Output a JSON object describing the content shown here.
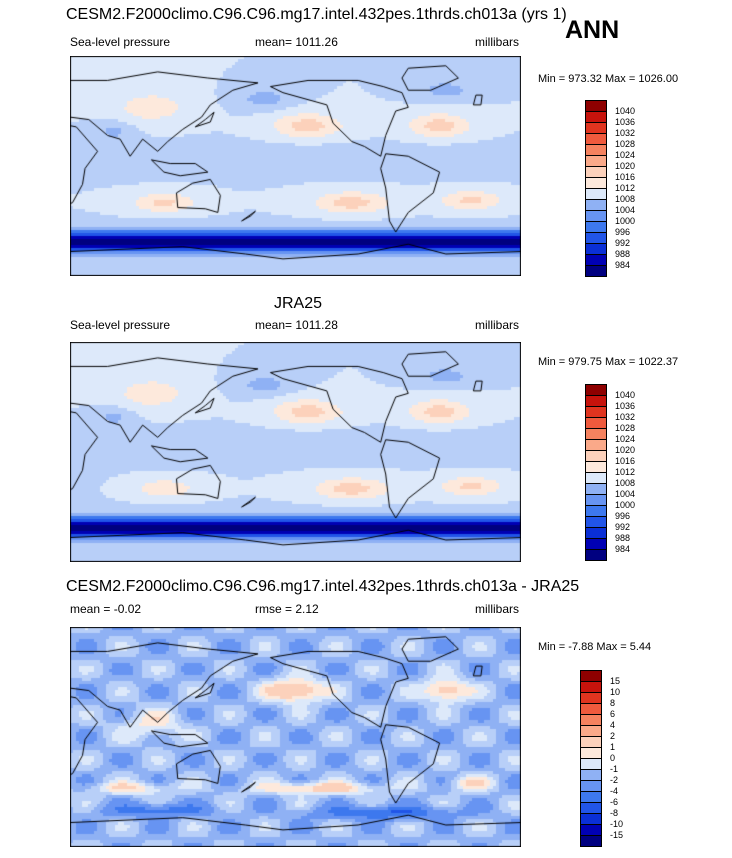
{
  "season": "ANN",
  "colors": {
    "slp": [
      "#000080",
      "#0000b4",
      "#0a2fd6",
      "#2155e8",
      "#3d78ee",
      "#6794f2",
      "#8fb1f4",
      "#b8cff8",
      "#dde9fa",
      "#fde9dc",
      "#fcd1bb",
      "#faa989",
      "#f5825f",
      "#ef5a3d",
      "#e0341f",
      "#c7130c",
      "#8e0000"
    ],
    "diff": [
      "#000080",
      "#0000b4",
      "#0a2fd6",
      "#2155e8",
      "#3d78ee",
      "#6794f2",
      "#8fb1f4",
      "#b8cff8",
      "#dde9fa",
      "#fde9dc",
      "#fcd1bb",
      "#faa989",
      "#f5825f",
      "#ef5a3d",
      "#e0341f",
      "#c7130c",
      "#8e0000"
    ],
    "land": "#000000"
  },
  "chart_data": [
    {
      "type": "heatmap",
      "title": "CESM2.F2000climo.C96.C96.mg17.intel.432pes.1thrds.ch013a (yrs 1)",
      "left_label": "Sea-level pressure",
      "mean_label": "mean=",
      "mean_value": "1011.26",
      "units": "millibars",
      "min_label": "Min =",
      "min_value": "973.32",
      "max_label": "Max =",
      "max_value": "1026.00",
      "levels": [
        "984",
        "988",
        "992",
        "996",
        "1000",
        "1004",
        "1008",
        "1012",
        "1016",
        "1020",
        "1024",
        "1028",
        "1032",
        "1036",
        "1040"
      ],
      "field": "slp_model"
    },
    {
      "type": "heatmap",
      "title": "JRA25",
      "left_label": "Sea-level pressure",
      "mean_label": "mean=",
      "mean_value": "1011.28",
      "units": "millibars",
      "min_label": "Min =",
      "min_value": "979.75",
      "max_label": "Max =",
      "max_value": "1022.37",
      "levels": [
        "984",
        "988",
        "992",
        "996",
        "1000",
        "1004",
        "1008",
        "1012",
        "1016",
        "1020",
        "1024",
        "1028",
        "1032",
        "1036",
        "1040"
      ],
      "field": "slp_obs"
    },
    {
      "type": "heatmap",
      "title": "CESM2.F2000climo.C96.C96.mg17.intel.432pes.1thrds.ch013a - JRA25",
      "left_label": "mean =  -0.02",
      "mean_label": "rmse =",
      "mean_value": "2.12",
      "units": "millibars",
      "min_label": "Min =",
      "min_value": "-7.88",
      "max_label": "Max =",
      "max_value": "5.44",
      "levels": [
        "-15",
        "-10",
        "-8",
        "-6",
        "-4",
        "-2",
        "-1",
        "0",
        "1",
        "2",
        "4",
        "6",
        "8",
        "10",
        "15"
      ],
      "field": "diff"
    }
  ]
}
